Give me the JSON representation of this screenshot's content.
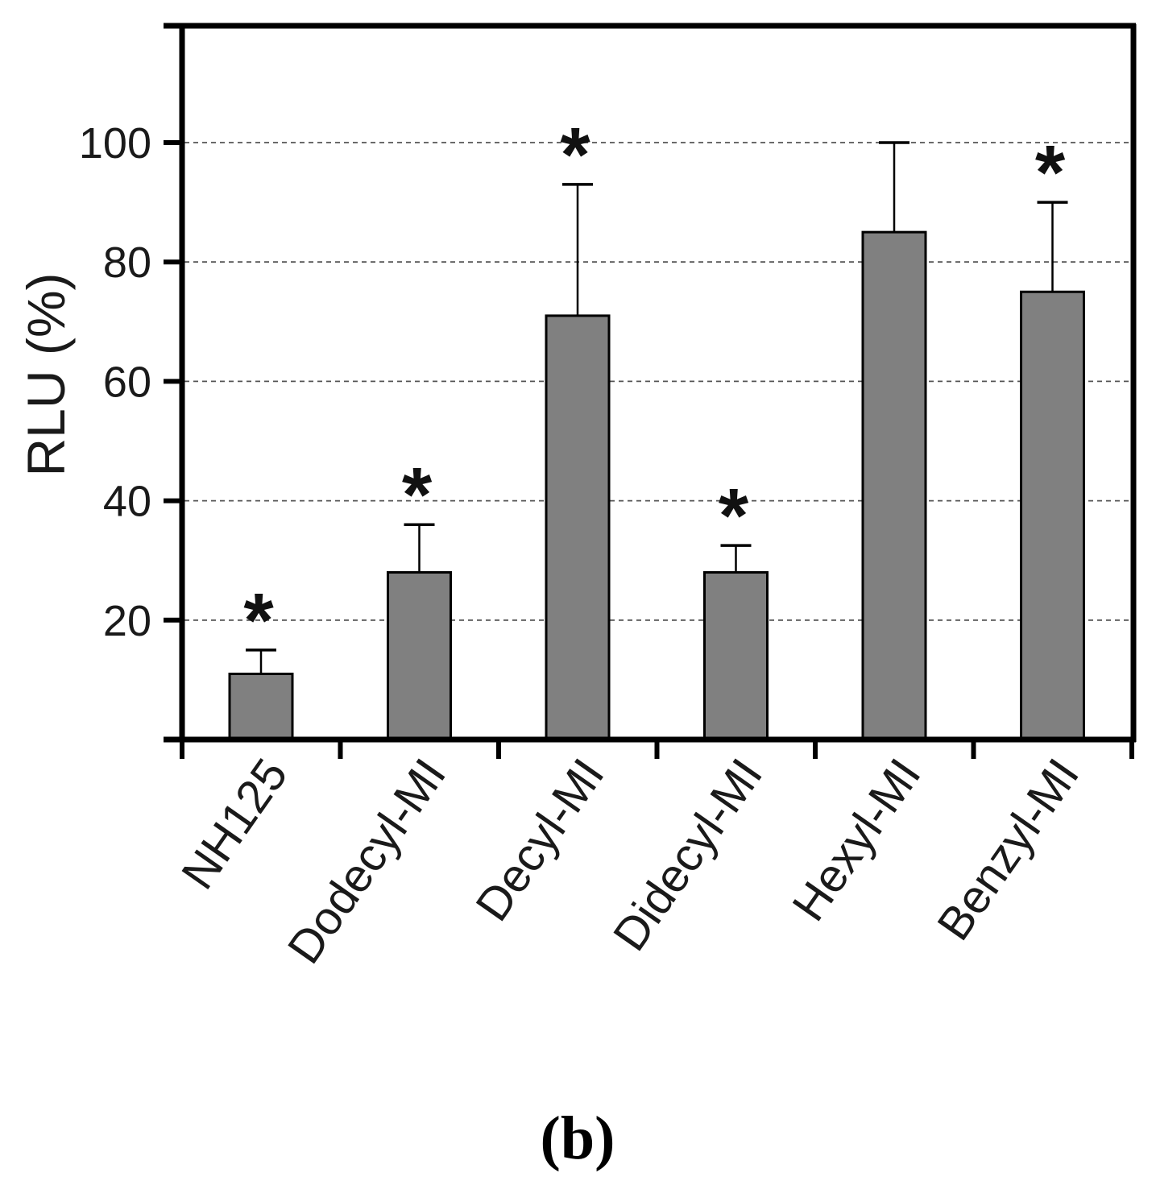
{
  "chart_data": {
    "type": "bar",
    "title": "",
    "xlabel": "",
    "ylabel": "RLU (%)",
    "ylim": [
      0,
      120
    ],
    "yticks": [
      20,
      40,
      60,
      80,
      100
    ],
    "grid": "horizontal dashed at y ticks",
    "categories": [
      "NH125",
      "Dodecyl-MI",
      "Decyl-MI",
      "Didecyl-MI",
      "Hexyl-MI",
      "Benzyl-MI"
    ],
    "values": [
      11,
      28,
      71,
      28,
      85,
      75
    ],
    "error_upper": [
      15,
      36,
      93,
      32.5,
      100,
      90
    ],
    "significant": [
      true,
      true,
      true,
      true,
      false,
      true
    ],
    "significance_marker": "*",
    "bar_color": "#808080",
    "panel_label": "(b)"
  }
}
